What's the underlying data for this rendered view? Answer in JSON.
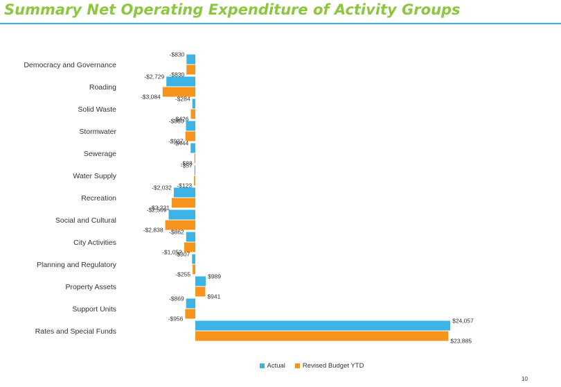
{
  "page": {
    "title": "Summary Net Operating Expenditure of Activity Groups",
    "page_number": "10",
    "title_color": "#8dc63f",
    "rule_color": "#35b6e5"
  },
  "chart_data": {
    "type": "bar",
    "orientation": "horizontal",
    "title": "",
    "xlabel": "",
    "ylabel": "",
    "grid": false,
    "legend_position": "bottom",
    "categories": [
      "Democracy and Governance",
      "Roading",
      "Solid Waste",
      "Stormwater",
      "Sewerage",
      "Water Supply",
      "Recreation",
      "Social and Cultural",
      "City Activities",
      "Planning and Regulatory",
      "Property Assets",
      "Support Units",
      "Rates and Special Funds"
    ],
    "series": [
      {
        "name": "Actual",
        "color": "#3bb3e5",
        "values": [
          -830,
          -2729,
          -284,
          -880,
          -444,
          -57,
          -2032,
          -2509,
          -862,
          -307,
          989,
          -869,
          24057
        ],
        "labels": [
          "-$830",
          "-$2,729",
          "-$284",
          "-$880",
          "-$444",
          "-$57",
          "-$2,032",
          "-$2,509",
          "-$862",
          "-$307",
          "$989",
          "-$869",
          "$24,057"
        ]
      },
      {
        "name": "Revised Budget YTD",
        "color": "#f7941d",
        "values": [
          -830,
          -3084,
          -426,
          -937,
          -88,
          -123,
          -2221,
          -2838,
          -1052,
          -255,
          941,
          -956,
          23885
        ],
        "labels": [
          "-$830",
          "-$3,084",
          "-$426",
          "-$937",
          "-$88",
          "-$123",
          "-$2,221",
          "-$2,838",
          "-$1,052",
          "-$255",
          "$941",
          "-$956",
          "$23,885"
        ]
      }
    ]
  }
}
